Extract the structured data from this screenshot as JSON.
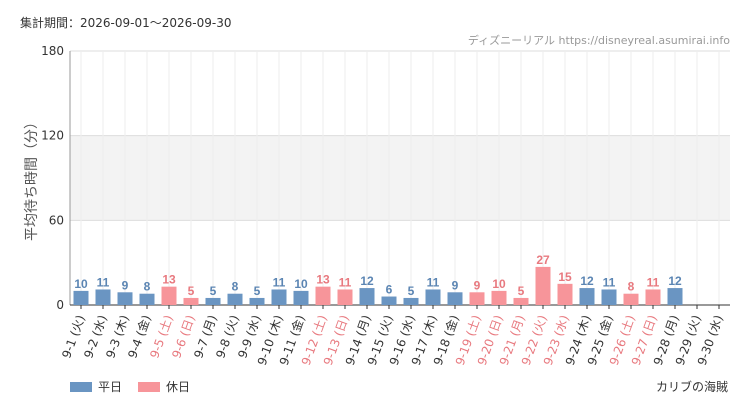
{
  "header": {
    "period_label": "集計期間：2026-09-01～2026-09-30",
    "credit": "ディズニーリアル https://disneyreal.asumirai.info"
  },
  "footer": {
    "attraction": "カリブの海賊"
  },
  "colors": {
    "weekday": "#6a95c2",
    "holiday": "#f7959a",
    "weekday_label": "#5b85b3",
    "holiday_label": "#e8797f"
  },
  "chart_data": {
    "type": "bar",
    "ylabel": "平均待ち時間（分）",
    "ylim": [
      0,
      180
    ],
    "yticks": [
      "0",
      "60",
      "120",
      "180"
    ],
    "grid": true,
    "legend_position": "bottom-left",
    "series": [
      {
        "name": "平日",
        "key": "weekday"
      },
      {
        "name": "休日",
        "key": "holiday"
      }
    ],
    "categories": [
      "9-1 (火)",
      "9-2 (水)",
      "9-3 (木)",
      "9-4 (金)",
      "9-5 (土)",
      "9-6 (日)",
      "9-7 (月)",
      "9-8 (火)",
      "9-9 (水)",
      "9-10 (木)",
      "9-11 (金)",
      "9-12 (土)",
      "9-13 (日)",
      "9-14 (月)",
      "9-15 (火)",
      "9-16 (水)",
      "9-17 (木)",
      "9-18 (金)",
      "9-19 (土)",
      "9-20 (日)",
      "9-21 (月)",
      "9-22 (火)",
      "9-23 (水)",
      "9-24 (木)",
      "9-25 (金)",
      "9-26 (土)",
      "9-27 (日)",
      "9-28 (月)",
      "9-29 (火)",
      "9-30 (水)"
    ],
    "values": [
      10,
      11,
      9,
      8,
      13,
      5,
      5,
      8,
      5,
      11,
      10,
      13,
      11,
      12,
      6,
      5,
      11,
      9,
      9,
      10,
      5,
      27,
      15,
      12,
      11,
      8,
      11,
      12,
      null,
      null
    ],
    "day_type": [
      "weekday",
      "weekday",
      "weekday",
      "weekday",
      "holiday",
      "holiday",
      "weekday",
      "weekday",
      "weekday",
      "weekday",
      "weekday",
      "holiday",
      "holiday",
      "weekday",
      "weekday",
      "weekday",
      "weekday",
      "weekday",
      "holiday",
      "holiday",
      "holiday",
      "holiday",
      "holiday",
      "weekday",
      "weekday",
      "holiday",
      "holiday",
      "weekday",
      "weekday",
      "weekday"
    ]
  }
}
